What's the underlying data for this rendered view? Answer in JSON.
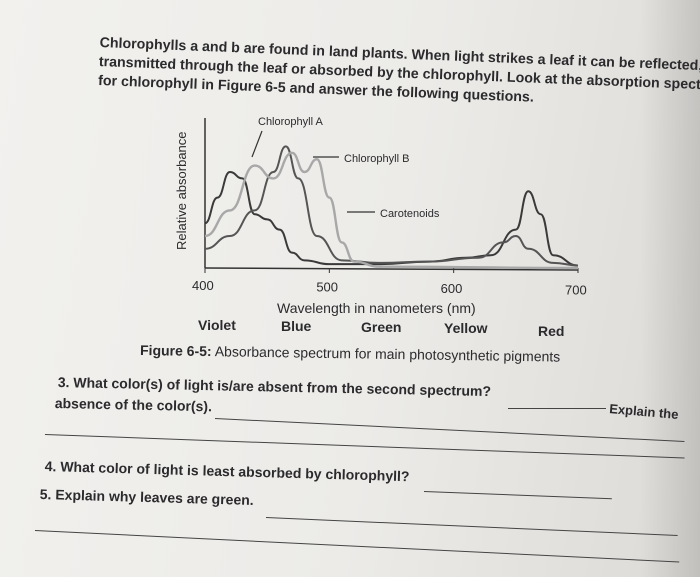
{
  "intro": {
    "line1": "Chlorophylls a and b are found in land plants. When light strikes a leaf it can be reflected,",
    "line2": "transmitted through the leaf or absorbed by the chlorophyll. Look at the absorption spectrum",
    "line3": "for chlorophyll in Figure 6-5 and answer the following questions."
  },
  "chart_data": {
    "type": "line",
    "ylabel": "Relative absorbance",
    "xlabel": "Wavelength in nanometers (nm)",
    "xlim": [
      400,
      700
    ],
    "x_ticks": [
      "400",
      "500",
      "600",
      "700"
    ],
    "color_labels": [
      "Violet",
      "Blue",
      "Green",
      "Yellow",
      "Red"
    ],
    "series": [
      {
        "name": "Chlorophyll A",
        "color": "#3a3a3a",
        "x": [
          400,
          410,
          420,
          430,
          440,
          450,
          460,
          470,
          480,
          500,
          540,
          580,
          610,
          630,
          650,
          660,
          670,
          680,
          700
        ],
        "y": [
          0.35,
          0.55,
          0.75,
          0.7,
          0.42,
          0.38,
          0.3,
          0.12,
          0.06,
          0.03,
          0.03,
          0.05,
          0.08,
          0.1,
          0.3,
          0.6,
          0.42,
          0.1,
          0.02
        ]
      },
      {
        "name": "Chlorophyll B",
        "color": "#555555",
        "x": [
          400,
          420,
          440,
          455,
          465,
          475,
          490,
          510,
          540,
          580,
          620,
          640,
          650,
          660,
          680,
          700
        ],
        "y": [
          0.15,
          0.25,
          0.45,
          0.75,
          0.95,
          0.7,
          0.25,
          0.06,
          0.04,
          0.05,
          0.08,
          0.2,
          0.25,
          0.15,
          0.04,
          0.02
        ]
      },
      {
        "name": "Carotenoids",
        "color": "#a8a8a8",
        "x": [
          400,
          420,
          440,
          455,
          470,
          480,
          490,
          500,
          510,
          520,
          540,
          700
        ],
        "y": [
          0.25,
          0.45,
          0.8,
          0.7,
          0.9,
          0.75,
          0.85,
          0.55,
          0.2,
          0.05,
          0.01,
          0.0
        ]
      }
    ]
  },
  "figure": {
    "caption_bold": "Figure 6-5:",
    "caption_rest": " Absorbance spectrum for main photosynthetic pigments"
  },
  "questions": {
    "q3_line1": "3. What color(s) of light is/are absent from the second spectrum?",
    "q3_tail": "Explain the",
    "q3_line2": "absence of the color(s).",
    "q4": "4. What color of light is least absorbed by chlorophyll?",
    "q5": "5. Explain why leaves are green."
  }
}
